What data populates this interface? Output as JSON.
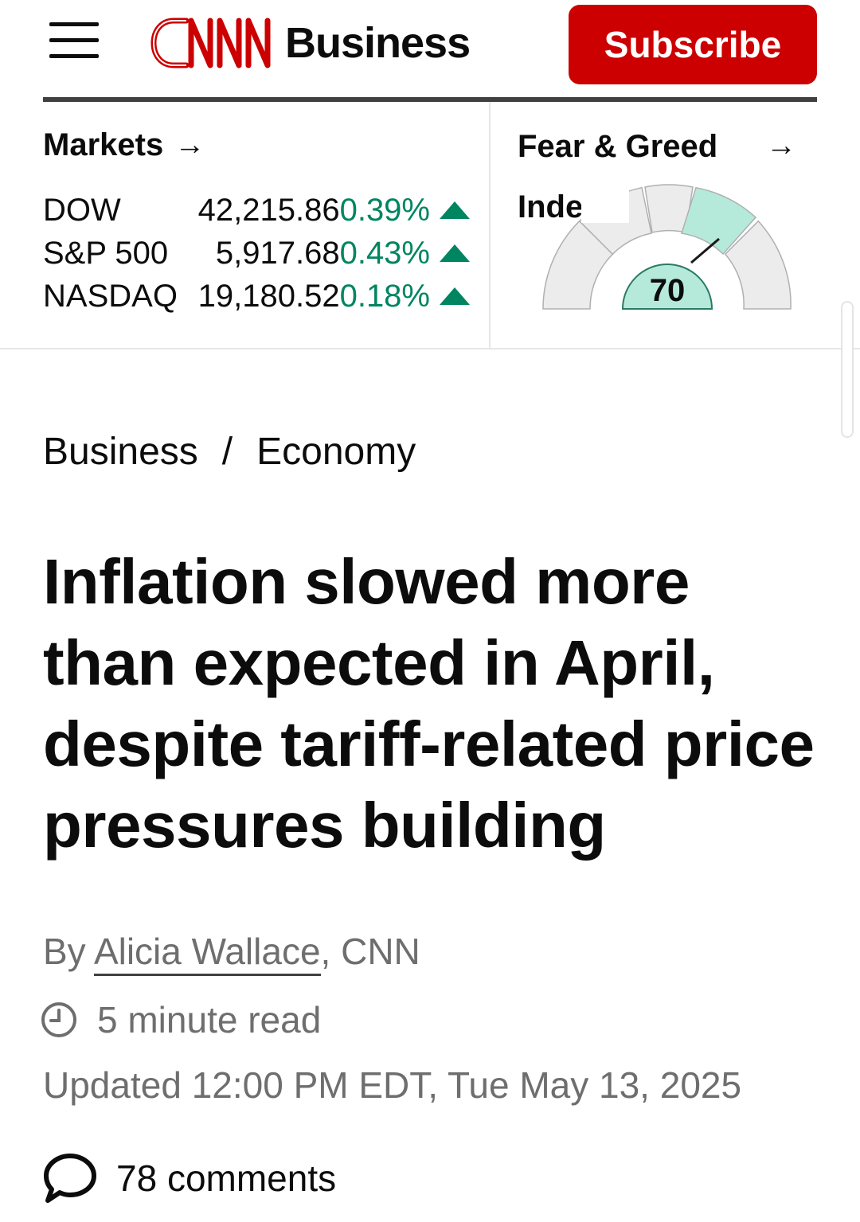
{
  "header": {
    "menu_icon": "hamburger-menu-icon",
    "logo_text": "CNN",
    "section": "Business",
    "subscribe_label": "Subscribe",
    "brand_color": "#cc0000"
  },
  "markets": {
    "title": "Markets",
    "arrow": "→",
    "rows": [
      {
        "name": "DOW",
        "value": "42,215.86",
        "change": "0.39%",
        "direction": "up"
      },
      {
        "name": "S&P 500",
        "value": "5,917.68",
        "change": "0.43%",
        "direction": "up"
      },
      {
        "name": "NASDAQ",
        "value": "19,180.52",
        "change": "0.18%",
        "direction": "up"
      }
    ],
    "up_color": "#008561"
  },
  "fear_greed": {
    "title_line1": "Fear & Greed",
    "title_line2": "Index",
    "arrow": "→",
    "value": "70",
    "highlight_color": "#b5eadb"
  },
  "breadcrumb": {
    "items": [
      "Business",
      "Economy"
    ],
    "separator": "/"
  },
  "article": {
    "headline": "Inflation slowed more than expected in April, despite tariff-related price pressures building",
    "byline_prefix": "By ",
    "author": "Alicia Wallace",
    "byline_suffix": ", CNN",
    "read_time": "5 minute read",
    "updated": "Updated 12:00 PM EDT, Tue May 13, 2025",
    "comments": "78 comments"
  }
}
